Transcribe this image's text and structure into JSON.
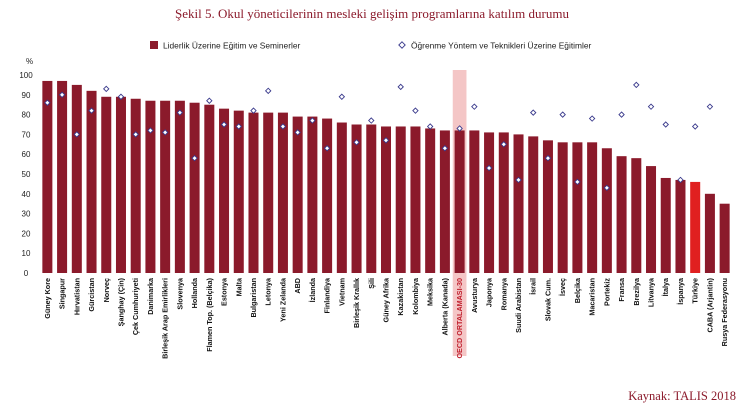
{
  "figure": {
    "title": "Şekil 5. Okul yöneticilerinin mesleki gelişim programlarına katılım durumu",
    "source": "Kaynak: TALIS 2018"
  },
  "colors": {
    "bar": "#8b1a2b",
    "highlight_bar": "#e02020",
    "oecd_band": "#f4c6c6",
    "marker": "#3a3a8c",
    "title": "#8b1a2b"
  },
  "chart_data": {
    "type": "bar",
    "title": "Şekil 5. Okul yöneticilerinin mesleki gelişim programlarına katılım durumu",
    "ylabel": "%",
    "ylim": [
      0,
      100
    ],
    "yticks": [
      0,
      10,
      20,
      30,
      40,
      50,
      60,
      70,
      80,
      90,
      100
    ],
    "grid": false,
    "legend_position": "top",
    "highlight_category": "OECD ORTALAMASI-30",
    "highlight_bar_category": "Türkiye",
    "categories": [
      "Güney Kore",
      "Singapur",
      "Hırvatistan",
      "Gürcistan",
      "Norveç",
      "Şanghay (Çin)",
      "Çek Cumhuriyeti",
      "Danimarka",
      "Birleşik Arap Emirlikleri",
      "Slovenya",
      "Hollanda",
      "Flamen Top. (Belçika)",
      "Estonya",
      "Malta",
      "Bulgaristan",
      "Letonya",
      "Yeni Zelanda",
      "ABD",
      "İzlanda",
      "Finlandiya",
      "Vietnam",
      "Birleşik Krallık",
      "Şili",
      "Güney Afrika",
      "Kazakistan",
      "Kolombiya",
      "Meksika",
      "Alberta (Kanada)",
      "OECD ORTALAMASI-30",
      "Avusturya",
      "Japonya",
      "Romanya",
      "Suudi Arabistan",
      "İsrail",
      "Slovak Cum.",
      "İsveç",
      "Belçika",
      "Macaristan",
      "Portekiz",
      "Fransa",
      "Brezilya",
      "Litvanya",
      "İtalya",
      "İspanya",
      "Türkiye",
      "CABA (Arjantin)",
      "Rusya Federasyonu"
    ],
    "series": [
      {
        "name": "Liderlik Üzerine Eğitim ve Seminerler",
        "style": "bar",
        "values": [
          97,
          97,
          95,
          92,
          89,
          89,
          88,
          87,
          87,
          87,
          86,
          85,
          83,
          82,
          81,
          81,
          81,
          79,
          79,
          78,
          76,
          75,
          75,
          74,
          74,
          74,
          73,
          72,
          72,
          72,
          71,
          71,
          70,
          69,
          67,
          66,
          66,
          66,
          63,
          59,
          58,
          54,
          48,
          47,
          46,
          40,
          35
        ]
      },
      {
        "name": "Öğrenme Yöntem ve Teknikleri Üzerine Eğitimler",
        "style": "marker",
        "values": [
          86,
          90,
          70,
          82,
          93,
          89,
          70,
          72,
          71,
          81,
          58,
          87,
          75,
          74,
          82,
          92,
          74,
          71,
          77,
          63,
          89,
          66,
          77,
          67,
          94,
          82,
          74,
          63,
          73,
          84,
          53,
          65,
          47,
          81,
          58,
          80,
          46,
          78,
          43,
          80,
          95,
          84,
          75,
          47,
          74,
          84,
          null
        ]
      }
    ]
  }
}
